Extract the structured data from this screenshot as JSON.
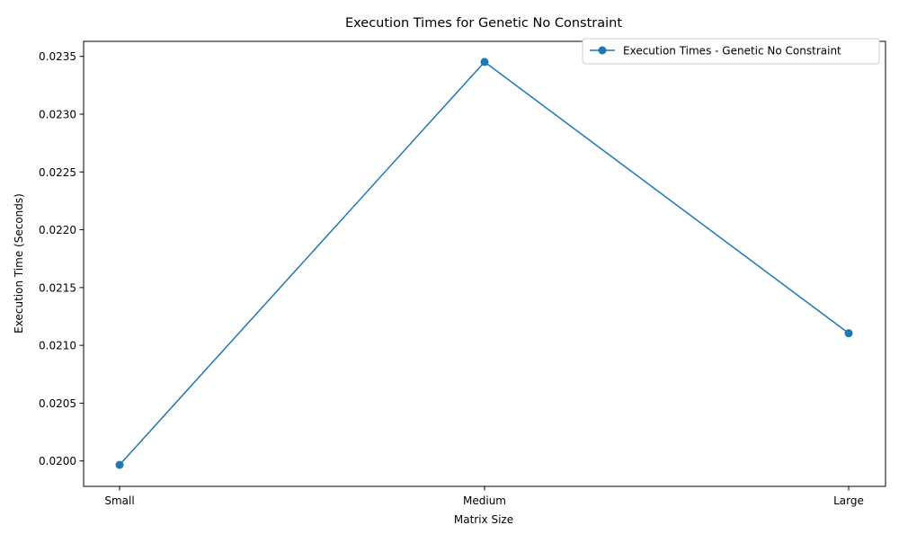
{
  "chart_data": {
    "type": "line",
    "title": "Execution Times for Genetic No Constraint",
    "xlabel": "Matrix Size",
    "ylabel": "Execution Time (Seconds)",
    "categories": [
      "Small",
      "Medium",
      "Large"
    ],
    "series": [
      {
        "name": "Execution Times - Genetic No Constraint",
        "values": [
          0.019966,
          0.023452,
          0.021105
        ],
        "color": "#1f77b4",
        "marker": "circle"
      }
    ],
    "yticks": [
      "0.0200",
      "0.0205",
      "0.0210",
      "0.0215",
      "0.0220",
      "0.0225",
      "0.0230",
      "0.0235"
    ],
    "ylim": [
      0.01978,
      0.02363
    ],
    "grid": false,
    "legend": "top-right"
  }
}
